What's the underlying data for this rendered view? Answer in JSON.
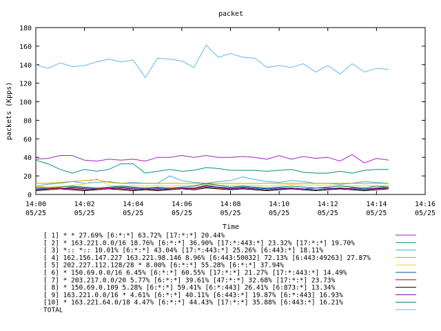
{
  "chart_data": {
    "type": "line",
    "title": "packet",
    "xlabel": "Time",
    "ylabel": "packets (Kpps)",
    "ylim": [
      0,
      180
    ],
    "y_ticks": [
      0,
      20,
      40,
      60,
      80,
      100,
      120,
      140,
      160,
      180
    ],
    "x_ticks": [
      {
        "time": "14:00",
        "date": "05/25"
      },
      {
        "time": "14:02",
        "date": "05/25"
      },
      {
        "time": "14:04",
        "date": "05/25"
      },
      {
        "time": "14:06",
        "date": "05/25"
      },
      {
        "time": "14:08",
        "date": "05/25"
      },
      {
        "time": "14:10",
        "date": "05/25"
      },
      {
        "time": "14:12",
        "date": "05/25"
      },
      {
        "time": "14:14",
        "date": "05/25"
      },
      {
        "time": "14:16",
        "date": "05/25"
      }
    ],
    "grid": false,
    "legend_placement": "bottom",
    "x": [
      "14:00",
      "14:00:30",
      "14:01",
      "14:01:30",
      "14:02",
      "14:02:30",
      "14:03",
      "14:03:30",
      "14:04",
      "14:04:30",
      "14:05",
      "14:05:30",
      "14:06",
      "14:06:30",
      "14:07",
      "14:07:30",
      "14:08",
      "14:08:30",
      "14:09",
      "14:09:30",
      "14:10",
      "14:10:30",
      "14:11",
      "14:11:30",
      "14:12",
      "14:12:30",
      "14:13",
      "14:13:30",
      "14:14",
      "14:14:30"
    ],
    "series": [
      {
        "name": "[ 1] * * 27.69%  [6:*:*] 63.72% [17:*:*] 20.44%",
        "color": "#a020c0",
        "values": [
          38,
          39,
          42,
          42,
          37,
          36,
          38,
          37,
          38,
          36,
          40,
          40,
          42,
          40,
          42,
          40,
          40,
          41,
          40,
          38,
          42,
          38,
          41,
          39,
          40,
          36,
          43,
          34,
          39,
          37
        ]
      },
      {
        "name": "[ 2] * 163.221.0.0/16 18.76%  [6:*:*] 36.90% [17:*:443:*] 23.32% [17:*:*] 19.70%",
        "color": "#00907a",
        "values": [
          37,
          33,
          27,
          23,
          27,
          25,
          27,
          33,
          33,
          23,
          25,
          27,
          25,
          26,
          29,
          28,
          26,
          26,
          26,
          25,
          26,
          27,
          24,
          23,
          23,
          25,
          23,
          26,
          27,
          27
        ]
      },
      {
        "name": "[ 3] *:: *:: 10.01%  [6:*:*] 43.04% [17:*:443:*] 25.26% [6:443:*] 18.11%",
        "color": "#40b0e0",
        "values": [
          9,
          11,
          12,
          14,
          12,
          13,
          14,
          12,
          13,
          12,
          12,
          20,
          15,
          13,
          12,
          14,
          15,
          19,
          16,
          14,
          13,
          15,
          14,
          12,
          12,
          11,
          12,
          14,
          13,
          12
        ]
      },
      {
        "name": "[ 4] 162.156.147.227 163.221.98.146 8.96%  [6:443:50032] 72.13% [6:443:49263] 27.87%",
        "color": "#c8a000",
        "values": [
          12,
          12,
          13,
          14,
          15,
          16,
          13,
          12,
          12,
          12,
          12,
          12,
          12,
          12,
          12,
          12,
          12,
          12,
          12,
          12,
          12,
          12,
          12,
          12,
          12,
          12,
          12,
          12,
          12,
          12
        ]
      },
      {
        "name": "[ 5] 202.227.112.128/28 * 8.00%  [6:*:*] 55.28% [6:*:*] 37.94%",
        "color": "#ffcc33",
        "values": [
          9,
          8,
          9,
          10,
          11,
          17,
          10,
          9,
          10,
          9,
          10,
          9,
          10,
          10,
          11,
          10,
          10,
          10,
          10,
          9,
          10,
          11,
          10,
          10,
          10,
          10,
          9,
          10,
          9,
          10
        ]
      },
      {
        "name": "[ 6] * 150.69.0.0/16 6.45%  [6:*:*] 60.55% [17:*:*] 21.27% [17:*:443:*] 14.49%",
        "color": "#0050a0",
        "values": [
          6,
          7,
          6,
          8,
          7,
          6,
          7,
          8,
          7,
          6,
          7,
          6,
          7,
          7,
          9,
          8,
          7,
          8,
          7,
          6,
          7,
          7,
          6,
          7,
          7,
          6,
          7,
          6,
          7,
          8
        ]
      },
      {
        "name": "[ 7] * 203.217.0.0/20 5.77%  [6:*:*] 39.61% [47:*:*] 32.68% [17:*:*] 23.73%",
        "color": "#c00000",
        "values": [
          5,
          6,
          7,
          6,
          5,
          6,
          7,
          6,
          5,
          6,
          5,
          6,
          7,
          6,
          8,
          7,
          6,
          7,
          6,
          5,
          6,
          7,
          6,
          5,
          6,
          7,
          6,
          5,
          6,
          7
        ]
      },
      {
        "name": "[ 8] * 150.69.0.109 5.28%  [6:*:*] 59.41% [6:*:443] 26.41% [6:873:*] 13.34%",
        "color": "#000000",
        "values": [
          4,
          5,
          6,
          5,
          4,
          5,
          6,
          5,
          4,
          5,
          4,
          5,
          6,
          5,
          7,
          6,
          5,
          6,
          5,
          4,
          5,
          6,
          5,
          4,
          5,
          6,
          5,
          4,
          5,
          6
        ]
      },
      {
        "name": "[ 9] 163.221.0.0/16 * 4.61%  [6:*:*] 40.11% [6:443:*] 19.87% [6:*:443] 16.93%",
        "color": "#8000a0",
        "values": [
          6,
          5,
          6,
          7,
          6,
          5,
          6,
          7,
          6,
          5,
          6,
          5,
          6,
          7,
          10,
          8,
          6,
          7,
          6,
          5,
          6,
          7,
          6,
          5,
          6,
          7,
          6,
          5,
          7,
          6
        ]
      },
      {
        "name": "[10] * 163.221.64.0/18 4.47%  [6:*:*] 44.43% [17:*:*] 35.88% [6:443:*] 16.21%",
        "color": "#008060",
        "values": [
          8,
          7,
          8,
          9,
          8,
          7,
          8,
          9,
          8,
          7,
          8,
          7,
          8,
          9,
          12,
          10,
          8,
          9,
          8,
          7,
          8,
          9,
          8,
          7,
          8,
          9,
          8,
          7,
          9,
          8
        ]
      },
      {
        "name": "TOTAL",
        "color": "#60b8e8",
        "values": [
          140,
          136,
          142,
          138,
          139,
          143,
          146,
          143,
          145,
          126,
          147,
          146,
          144,
          137,
          161,
          148,
          152,
          148,
          147,
          137,
          139,
          137,
          141,
          132,
          139,
          130,
          141,
          132,
          136,
          135
        ]
      }
    ]
  }
}
